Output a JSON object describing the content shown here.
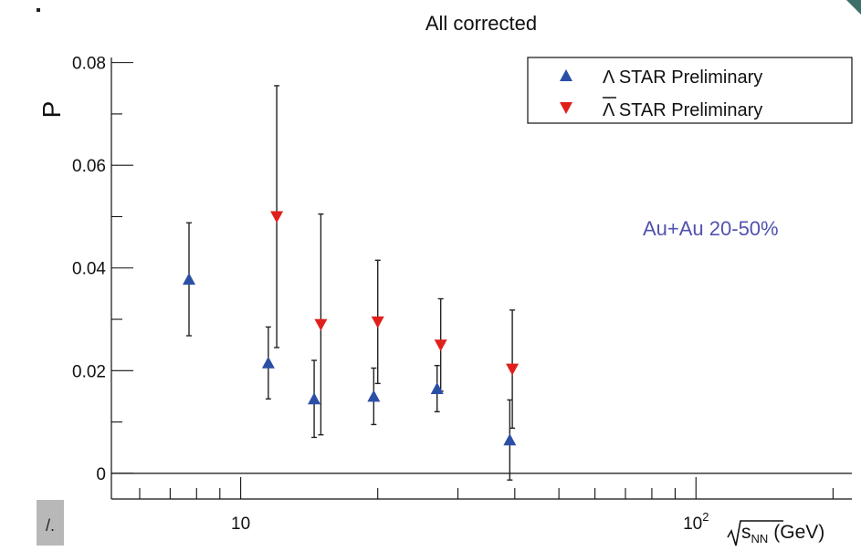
{
  "chart_data": {
    "type": "scatter",
    "title": "All corrected",
    "ylabel": "P",
    "xlabel_prefix": "s",
    "xlabel_sub": "NN",
    "xlabel_unit": "(GeV)",
    "xscale": "log",
    "xlim": [
      5.2,
      220
    ],
    "ylim": [
      -0.005,
      0.081
    ],
    "x_ticklabels": [
      {
        "value": 10,
        "label": "10"
      },
      {
        "value": 100,
        "label": "10",
        "sup": "2"
      }
    ],
    "y_ticklabels": [
      {
        "value": 0,
        "label": "0"
      },
      {
        "value": 0.02,
        "label": "0.02"
      },
      {
        "value": 0.04,
        "label": "0.04"
      },
      {
        "value": 0.06,
        "label": "0.06"
      },
      {
        "value": 0.08,
        "label": "0.08"
      }
    ],
    "zero_line": true,
    "annotation": "Au+Au 20-50%",
    "annotation_color": "#5252b0",
    "legend_position": "top-right",
    "series": [
      {
        "name": "Λ STAR Preliminary",
        "marker": "triangle-up",
        "color": "#2c4fa6",
        "points": [
          {
            "x": 7.7,
            "y": 0.0378,
            "err": 0.011
          },
          {
            "x": 11.5,
            "y": 0.0215,
            "err": 0.007
          },
          {
            "x": 14.5,
            "y": 0.0145,
            "err": 0.0075
          },
          {
            "x": 19.6,
            "y": 0.015,
            "err": 0.0055
          },
          {
            "x": 27,
            "y": 0.0165,
            "err": 0.0045
          },
          {
            "x": 39,
            "y": 0.0065,
            "err": 0.0078
          }
        ]
      },
      {
        "name": "Λ STAR Preliminary",
        "overline": true,
        "marker": "triangle-down",
        "color": "#e0201c",
        "points": [
          {
            "x": 12.0,
            "y": 0.05,
            "err": 0.0255
          },
          {
            "x": 15.0,
            "y": 0.029,
            "err": 0.0215
          },
          {
            "x": 20.0,
            "y": 0.0295,
            "err": 0.012
          },
          {
            "x": 27.5,
            "y": 0.025,
            "err": 0.009
          },
          {
            "x": 39.5,
            "y": 0.0203,
            "err": 0.0115
          }
        ]
      }
    ]
  },
  "page": {
    "corner_label": "/."
  }
}
